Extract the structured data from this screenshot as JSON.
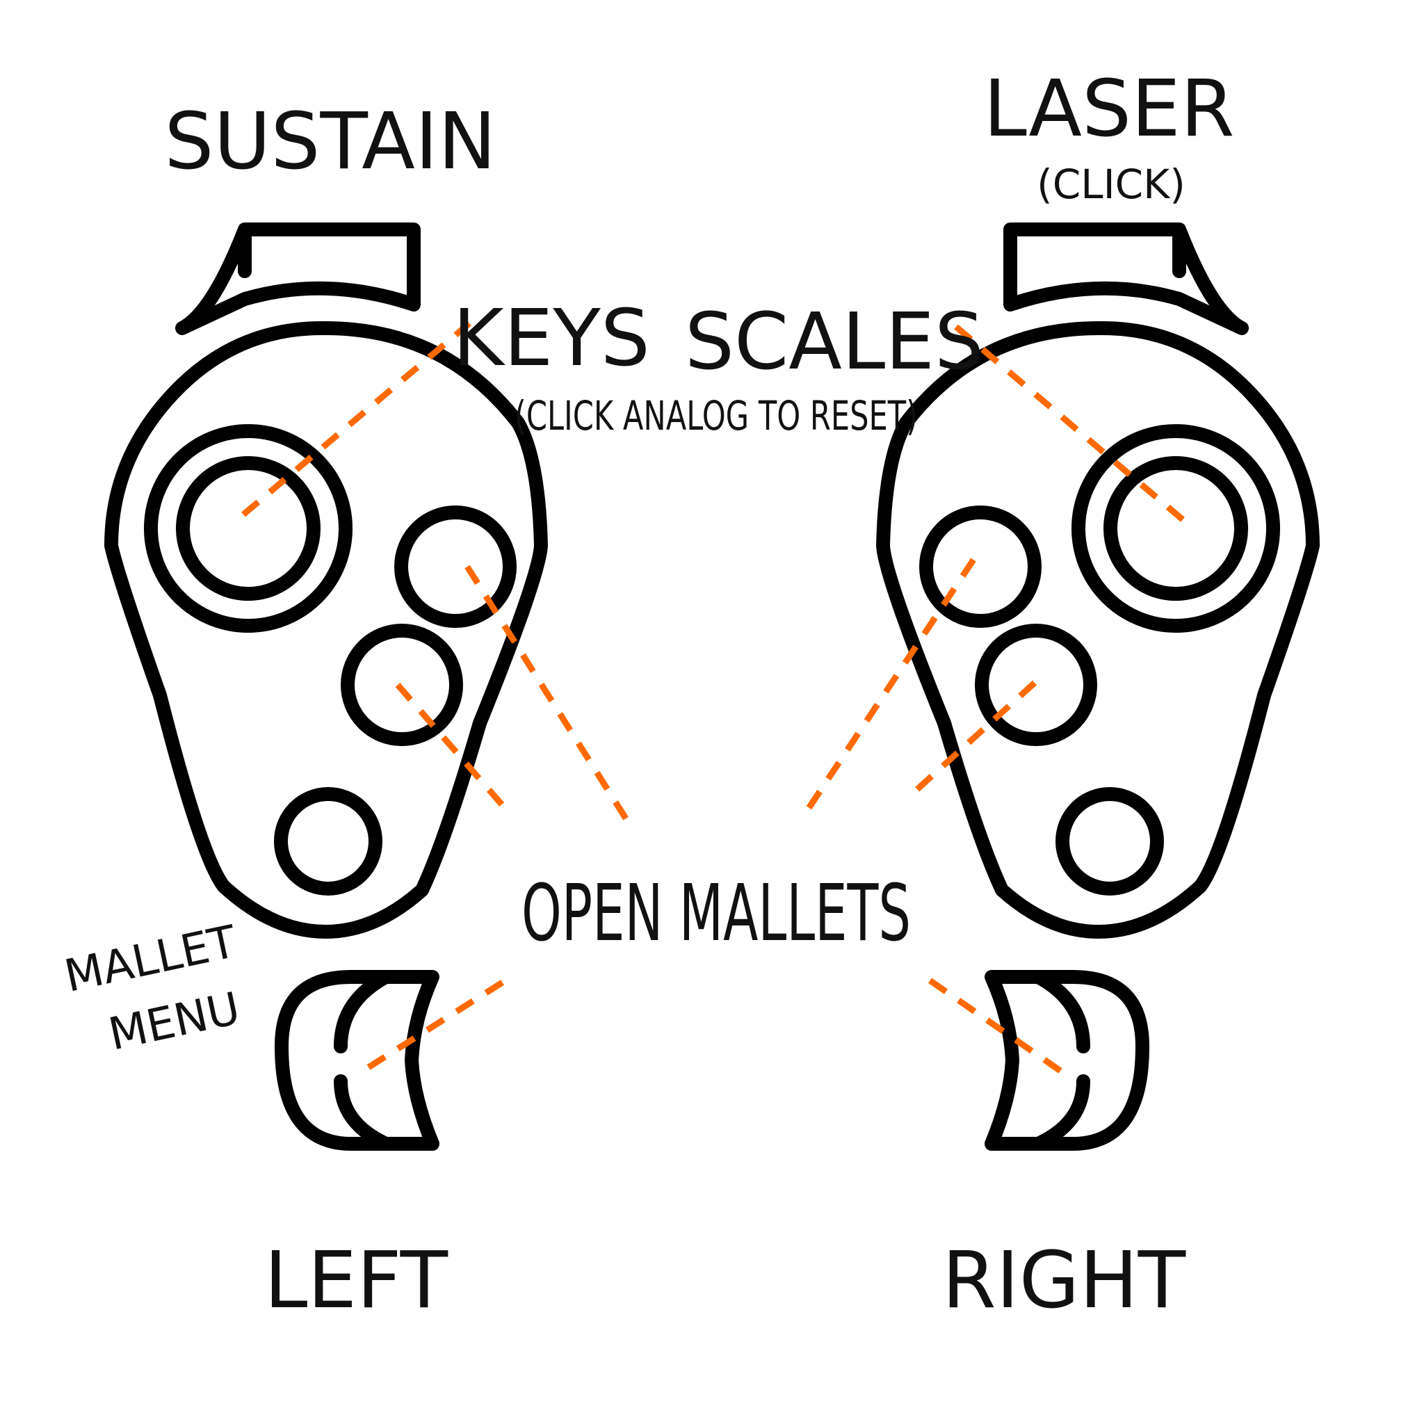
{
  "labels": {
    "sustain": "SUSTAIN",
    "laser": "LASER",
    "laser_note": "(CLICK)",
    "keys": "KEYS",
    "keys_note": "(CLICK ANALOG TO RESET)",
    "scales": "SCALES",
    "open_mallets": "OPEN MALLETS",
    "mallet_menu_line1": "MALLET",
    "mallet_menu_line2": "MENU",
    "left": "LEFT",
    "right": "RIGHT"
  },
  "colors": {
    "outline": "#000000",
    "leader": "#ff6a00",
    "background": "#ffffff"
  }
}
